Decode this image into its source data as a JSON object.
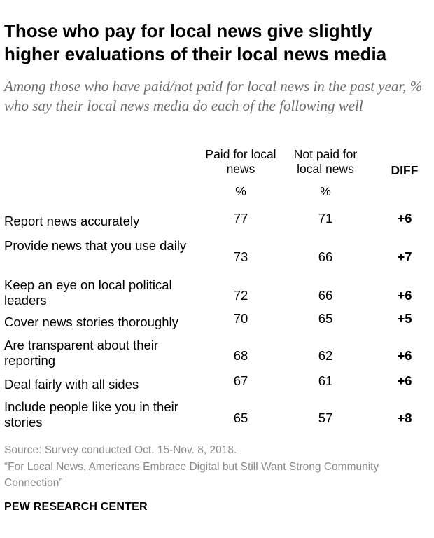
{
  "chart_data": {
    "type": "table",
    "title": "Those who pay for local news give slightly higher evaluations of their local news media",
    "subtitle": "Among those who have paid/not paid for local news in the past year, % who say their local news media do each of the following well",
    "columns": {
      "paid": "Paid for local news",
      "not_paid": "Not paid for local news",
      "diff": "DIFF",
      "unit": "%"
    },
    "rows": [
      {
        "label": "Report news accurately",
        "paid": 77,
        "not_paid": 71,
        "diff": "+6"
      },
      {
        "label": "Provide news that you use daily",
        "paid": 73,
        "not_paid": 66,
        "diff": "+7"
      },
      {
        "label": "Keep an eye on local political leaders",
        "paid": 72,
        "not_paid": 66,
        "diff": "+6"
      },
      {
        "label": "Cover news stories thoroughly",
        "paid": 70,
        "not_paid": 65,
        "diff": "+5"
      },
      {
        "label": "Are transparent about their reporting",
        "paid": 68,
        "not_paid": 62,
        "diff": "+6"
      },
      {
        "label": "Deal fairly with all sides",
        "paid": 67,
        "not_paid": 61,
        "diff": "+6"
      },
      {
        "label": "Include people like you in their stories",
        "paid": 65,
        "not_paid": 57,
        "diff": "+8"
      }
    ]
  },
  "footer": {
    "source": "Source: Survey conducted Oct. 15-Nov. 8, 2018.",
    "report": "“For Local News, Americans Embrace Digital but Still Want Strong Community Connection”",
    "brand": "PEW RESEARCH CENTER"
  }
}
